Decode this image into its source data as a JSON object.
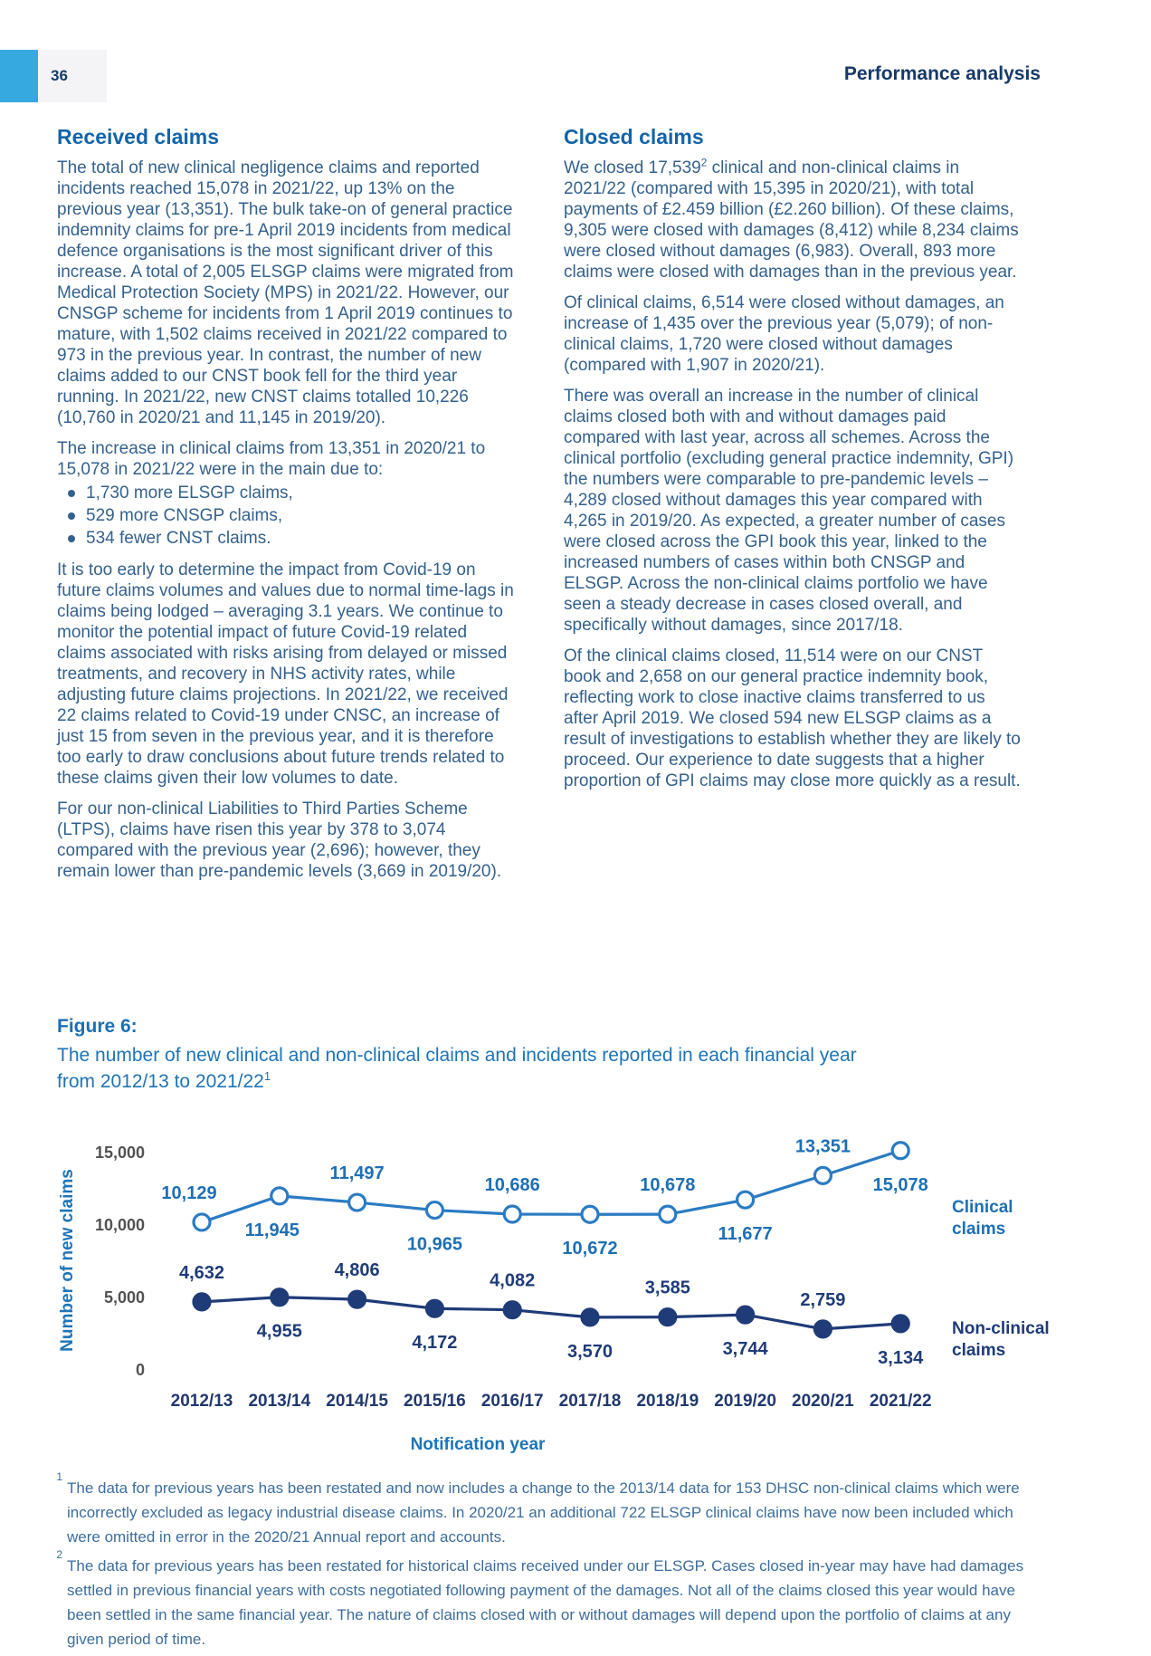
{
  "header": {
    "page_number": "36",
    "section_title": "Performance analysis"
  },
  "received": {
    "heading": "Received claims",
    "p1": "The total of new clinical negligence claims and reported incidents reached 15,078 in 2021/22, up 13% on the previous year (13,351). The bulk take-on of general practice indemnity claims for pre-1 April 2019 incidents from medical defence organisations is the most significant driver of this increase. A total of 2,005 ELSGP claims were migrated from Medical Protection Society (MPS) in 2021/22. However, our CNSGP scheme for incidents from 1 April 2019 continues to mature, with 1,502 claims received in 2021/22 compared to 973 in the previous year. In contrast, the number of new claims added to our CNST book fell for the third year running. In 2021/22, new CNST claims totalled 10,226 (10,760 in 2020/21 and 11,145 in 2019/20).",
    "p2_intro": "The increase in clinical claims from 13,351 in 2020/21 to 15,078 in 2021/22 were in the main due to:",
    "bullets": [
      "1,730 more ELSGP claims,",
      "529 more CNSGP claims,",
      "534 fewer CNST claims."
    ],
    "p3": "It is too early to determine the impact from Covid-19 on future claims volumes and values due to normal time-lags in claims being lodged – averaging 3.1 years. We continue to monitor the potential impact of future Covid-19 related claims associated with risks arising from delayed or missed treatments, and recovery in NHS activity rates, while adjusting future claims projections. In 2021/22, we received 22 claims related to Covid-19 under CNSC, an increase of just 15 from seven in the previous year, and it is therefore too early to draw conclusions about future trends related to these claims given their low volumes to date.",
    "p4": "For our non-clinical Liabilities to Third Parties Scheme (LTPS), claims have risen this year by 378 to 3,074 compared with the previous year (2,696); however, they remain lower than pre-pandemic levels (3,669 in 2019/20)."
  },
  "closed": {
    "heading": "Closed claims",
    "p1_a": "We closed 17,539",
    "p1_sup": "2",
    "p1_b": " clinical and non-clinical claims in 2021/22 (compared with 15,395 in 2020/21), with total payments of £2.459 billion (£2.260 billion). Of these claims, 9,305 were closed with damages (8,412) while 8,234 claims were closed without damages (6,983). Overall, 893 more claims were closed with damages than in the previous year.",
    "p2": "Of clinical claims, 6,514 were closed without damages, an increase of 1,435 over the previous year (5,079); of non-clinical claims, 1,720 were closed without damages (compared with 1,907 in 2020/21).",
    "p3": "There was overall an increase in the number of clinical claims closed both with and without damages paid compared with last year, across all schemes. Across the clinical portfolio (excluding general practice indemnity, GPI) the numbers were comparable to pre-pandemic levels – 4,289 closed without damages this year compared with 4,265 in 2019/20. As expected, a greater number of cases were closed across the GPI book this year, linked to the increased numbers of cases within both CNSGP and ELSGP. Across the non-clinical claims portfolio we have seen a steady decrease in cases closed overall, and specifically without damages, since 2017/18.",
    "p4": "Of the clinical claims closed, 11,514 were on our CNST book and 2,658 on our general practice indemnity book, reflecting work to close inactive claims transferred to us after April 2019. We closed 594 new ELSGP claims as a result of investigations to establish whether they are likely to proceed. Our experience to date suggests that a higher proportion of GPI claims may close more quickly as a result."
  },
  "figure": {
    "label": "Figure 6:",
    "caption": "The number of new clinical and non-clinical claims and incidents reported in each financial year from 2012/13 to 2021/22",
    "caption_sup": "1"
  },
  "chart_data": {
    "type": "line",
    "title": "Figure 6: The number of new clinical and non-clinical claims and incidents reported in each financial year from 2012/13 to 2021/22",
    "categories": [
      "2012/13",
      "2013/14",
      "2014/15",
      "2015/16",
      "2016/17",
      "2017/18",
      "2018/19",
      "2019/20",
      "2020/21",
      "2021/22"
    ],
    "series": [
      {
        "name": "Clinical claims",
        "color": "#2B7BC3",
        "label_color": "#1E6FB5",
        "marker": "open-circle",
        "values": [
          10129,
          11945,
          11497,
          10965,
          10686,
          10672,
          10678,
          11677,
          13351,
          15078
        ],
        "label_positions": [
          "above",
          "below",
          "above",
          "below",
          "above",
          "below",
          "above",
          "below",
          "above",
          "below"
        ],
        "label_dx": [
          -14,
          -8,
          0,
          0,
          0,
          0,
          0,
          0,
          0,
          0
        ]
      },
      {
        "name": "Non-clinical claims",
        "color": "#1F3B78",
        "label_color": "#1F3B78",
        "marker": "filled-circle",
        "values": [
          4632,
          4955,
          4806,
          4172,
          4082,
          3570,
          3585,
          3744,
          2759,
          3134
        ],
        "label_positions": [
          "above",
          "below",
          "above",
          "below",
          "above",
          "below",
          "above",
          "below",
          "above",
          "below"
        ],
        "label_dx": [
          0,
          0,
          0,
          0,
          0,
          0,
          0,
          0,
          0,
          0
        ]
      }
    ],
    "xlabel": "Notification year",
    "ylabel": "Number of new claims",
    "yticks": [
      0,
      5000,
      10000,
      15000
    ],
    "ylim": [
      0,
      16000
    ],
    "grid": false,
    "legend_position": "right"
  },
  "footnotes": [
    {
      "marker": "1",
      "text": "The data for previous years has been restated and now includes a change to the 2013/14 data for 153 DHSC non-clinical claims which were incorrectly excluded as legacy industrial disease claims. In 2020/21 an additional 722 ELSGP clinical claims have now been included which were omitted in error in the 2020/21 Annual report and accounts."
    },
    {
      "marker": "2",
      "text": "The data for previous years has been restated for historical claims received under our ELSGP. Cases closed in-year may have had damages settled in previous financial years with costs negotiated following payment of the damages. Not all of the claims closed this year would have been settled in the same financial year. The nature of claims closed with or without damages will depend upon the portfolio of claims at any given period of time."
    }
  ],
  "colors": {
    "accent_cyan": "#36A9E1",
    "header_box_gray": "#F4F4F6",
    "dark_navy": "#173968",
    "heading_blue": "#1464A8",
    "body_text_blue": "#35618C",
    "caption_blue": "#1E74B8",
    "clinical_line_blue": "#2B7BC3",
    "non_clinical_navy": "#1F3B78",
    "y_tick_gray": "#515254",
    "footnote_blue": "#3D6D9C"
  }
}
